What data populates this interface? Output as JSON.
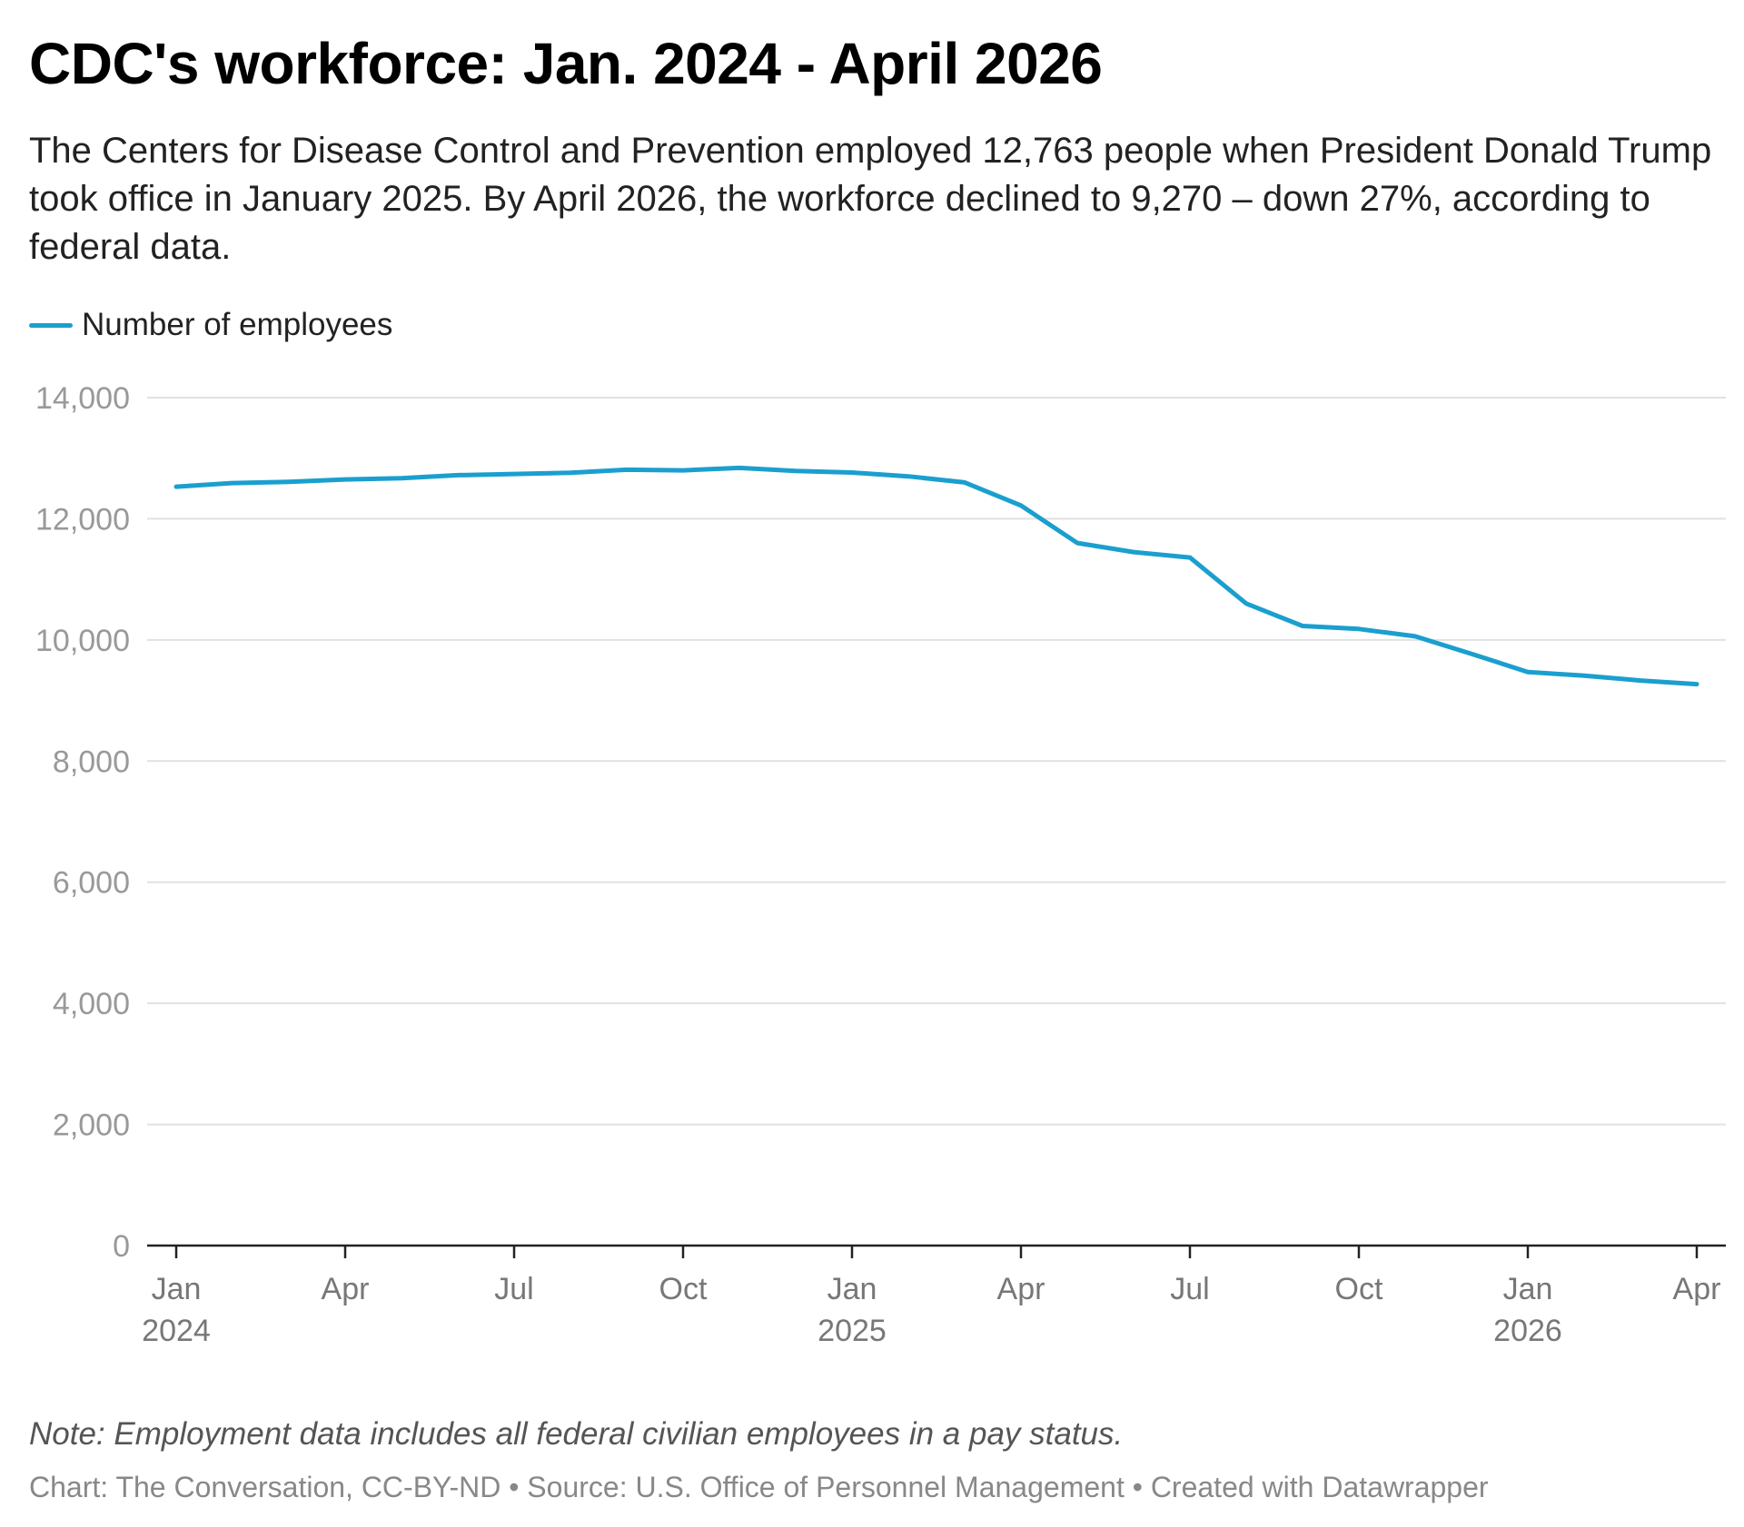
{
  "header": {
    "title": "CDC's workforce: Jan. 2024 - April 2026",
    "subtitle": "The Centers for Disease Control and Prevention employed 12,763 people when President Donald Trump took office in January 2025. By April 2026, the workforce declined to 9,270 – down 27%, according to federal data."
  },
  "legend": {
    "label": "Number of employees"
  },
  "footer": {
    "note": "Note: Employment data includes all federal civilian employees in a pay status.",
    "credits": "Chart: The Conversation, CC-BY-ND • Source: U.S. Office of Personnel Management • Created with Datawrapper"
  },
  "colors": {
    "line": "#1a9fcf",
    "grid": "#e1e1e1",
    "axis": "#222222",
    "tick_text": "#999999",
    "x_tick_text": "#777777"
  },
  "chart_data": {
    "type": "line",
    "title": "CDC's workforce: Jan. 2024 - April 2026",
    "xlabel": "",
    "ylabel": "",
    "ylim": [
      0,
      14000
    ],
    "xlim": [
      "2024-01",
      "2026-04"
    ],
    "grid": true,
    "legend_position": "top-left",
    "y_ticks": [
      {
        "value": 14000,
        "label": "14,000"
      },
      {
        "value": 12000,
        "label": "12,000"
      },
      {
        "value": 10000,
        "label": "10,000"
      },
      {
        "value": 8000,
        "label": "8,000"
      },
      {
        "value": 6000,
        "label": "6,000"
      },
      {
        "value": 4000,
        "label": "4,000"
      },
      {
        "value": 2000,
        "label": "2,000"
      },
      {
        "value": 0,
        "label": "0"
      }
    ],
    "x_ticks": [
      {
        "value": "2024-01",
        "label": "Jan",
        "sublabel": "2024"
      },
      {
        "value": "2024-04",
        "label": "Apr",
        "sublabel": ""
      },
      {
        "value": "2024-07",
        "label": "Jul",
        "sublabel": ""
      },
      {
        "value": "2024-10",
        "label": "Oct",
        "sublabel": ""
      },
      {
        "value": "2025-01",
        "label": "Jan",
        "sublabel": "2025"
      },
      {
        "value": "2025-04",
        "label": "Apr",
        "sublabel": ""
      },
      {
        "value": "2025-07",
        "label": "Jul",
        "sublabel": ""
      },
      {
        "value": "2025-10",
        "label": "Oct",
        "sublabel": ""
      },
      {
        "value": "2026-01",
        "label": "Jan",
        "sublabel": "2026"
      },
      {
        "value": "2026-04",
        "label": "Apr",
        "sublabel": ""
      }
    ],
    "series": [
      {
        "name": "Number of employees",
        "points": [
          {
            "x": "2024-01",
            "y": 12530
          },
          {
            "x": "2024-02",
            "y": 12590
          },
          {
            "x": "2024-03",
            "y": 12610
          },
          {
            "x": "2024-04",
            "y": 12650
          },
          {
            "x": "2024-05",
            "y": 12670
          },
          {
            "x": "2024-06",
            "y": 12720
          },
          {
            "x": "2024-07",
            "y": 12740
          },
          {
            "x": "2024-08",
            "y": 12760
          },
          {
            "x": "2024-09",
            "y": 12810
          },
          {
            "x": "2024-10",
            "y": 12800
          },
          {
            "x": "2024-11",
            "y": 12840
          },
          {
            "x": "2024-12",
            "y": 12790
          },
          {
            "x": "2025-01",
            "y": 12763
          },
          {
            "x": "2025-02",
            "y": 12700
          },
          {
            "x": "2025-03",
            "y": 12600
          },
          {
            "x": "2025-04",
            "y": 12220
          },
          {
            "x": "2025-05",
            "y": 11600
          },
          {
            "x": "2025-06",
            "y": 11450
          },
          {
            "x": "2025-07",
            "y": 11360
          },
          {
            "x": "2025-08",
            "y": 10600
          },
          {
            "x": "2025-09",
            "y": 10230
          },
          {
            "x": "2025-10",
            "y": 10180
          },
          {
            "x": "2025-11",
            "y": 10060
          },
          {
            "x": "2025-12",
            "y": 9770
          },
          {
            "x": "2026-01",
            "y": 9470
          },
          {
            "x": "2026-02",
            "y": 9410
          },
          {
            "x": "2026-03",
            "y": 9330
          },
          {
            "x": "2026-04",
            "y": 9270
          }
        ]
      }
    ]
  }
}
